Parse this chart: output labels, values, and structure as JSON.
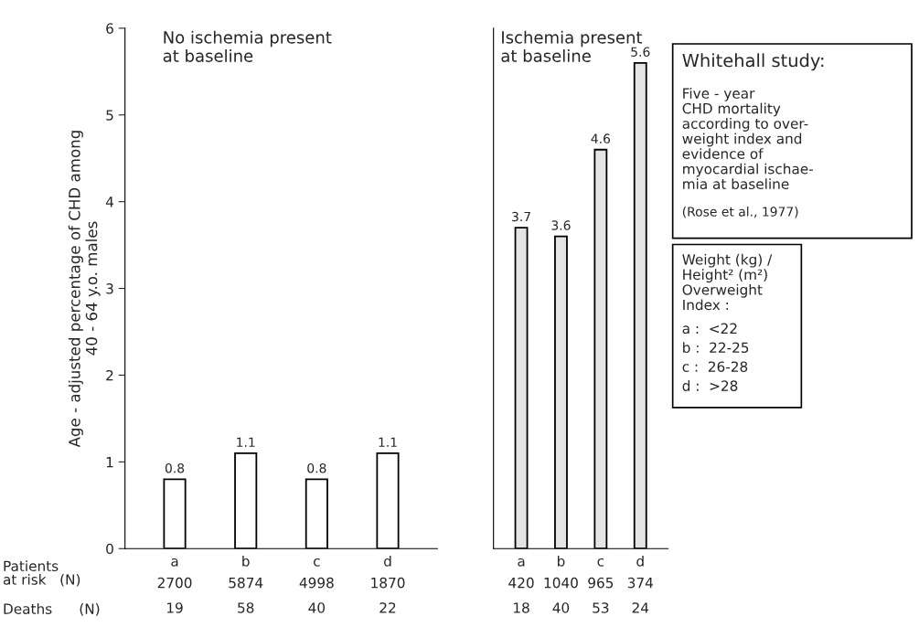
{
  "chart_data": [
    {
      "type": "bar",
      "title": "No ischemia present\nat baseline",
      "ylabel": "Age - adjusted percentage of CHD among\n40 - 64 y.o. males",
      "categories": [
        "a",
        "b",
        "c",
        "d"
      ],
      "values": [
        0.8,
        1.1,
        0.8,
        1.1
      ],
      "color": "#ffffff",
      "data_labels": true,
      "ylim": [
        0,
        6
      ],
      "yticks": [
        0,
        1,
        2,
        3,
        4,
        5,
        6
      ],
      "annotations": [
        "Patients\nat risk   (N)",
        "Deaths      (N)",
        "2700",
        "5874",
        "4998",
        "1870",
        "19",
        "58",
        "40",
        "22"
      ]
    },
    {
      "type": "bar",
      "title": "Ischemia present\nat baseline",
      "categories": [
        "a",
        "b",
        "c",
        "d"
      ],
      "values": [
        3.7,
        3.6,
        4.6,
        5.6
      ],
      "color": "#e4e4e4",
      "data_labels": true,
      "ylim": [
        0,
        6
      ],
      "tick_labels": "x",
      "annotations": [
        "420",
        "1040",
        "965",
        "374",
        "18",
        "40",
        "53",
        "24"
      ]
    },
    {
      "type": "other",
      "title": "Whitehall study:",
      "annotations": [
        "Five - year\nCHD mortality\naccording to over-\nweight index and\nevidence of\nmyocardial ischae-\nmia at baseline",
        "(Rose et al., 1977)"
      ]
    },
    {
      "type": "other",
      "annotations": [
        "Weight (kg) /\nHeight² (m²)\nOverweight\nIndex :",
        "a :  <22",
        "b :  22-25",
        "c :  26-28",
        "d :  >28"
      ]
    }
  ]
}
